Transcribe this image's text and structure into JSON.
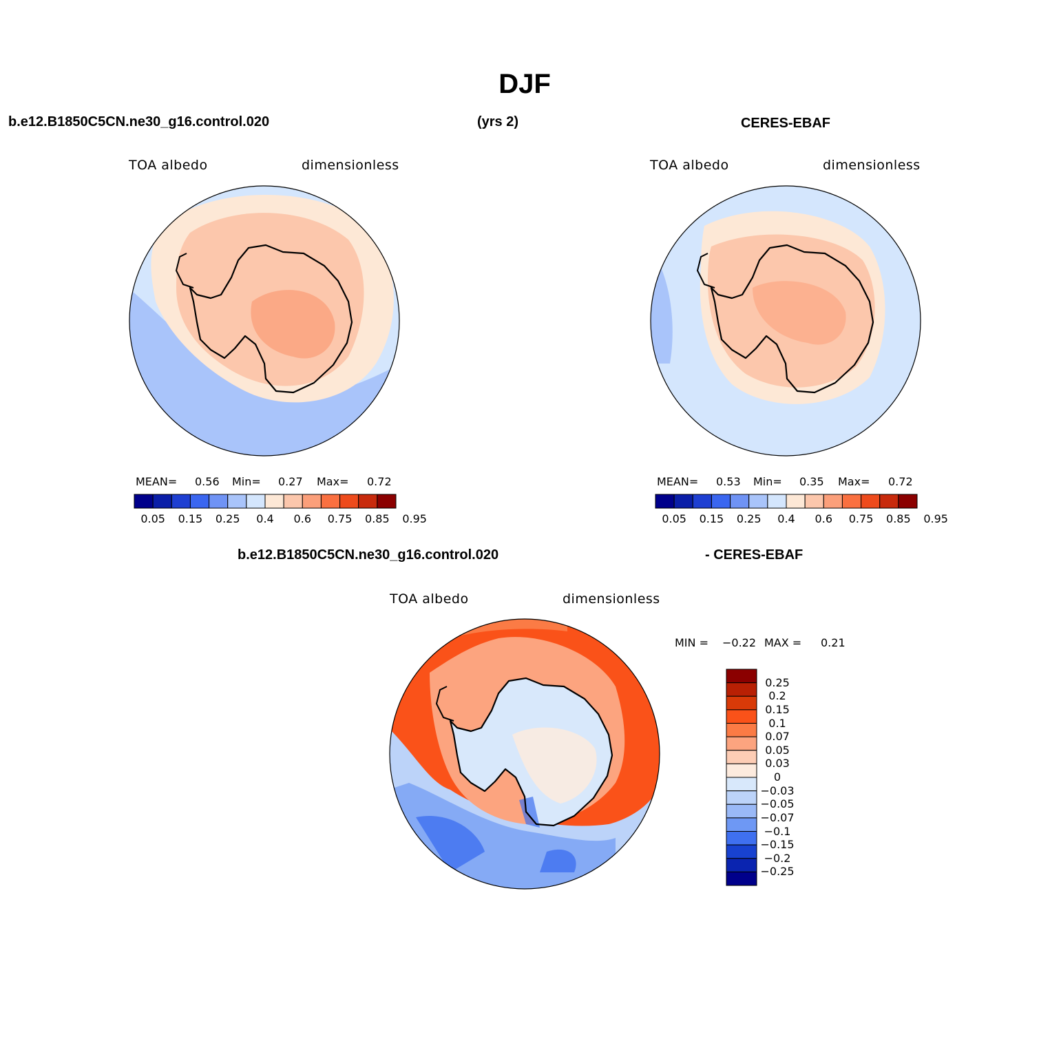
{
  "title": "DJF",
  "case_name": "b.e12.B1850C5CN.ne30_g16.control.020",
  "years": "(yrs 2)",
  "obs_name": "CERES-EBAF",
  "diff_obs_label": "- CERES-EBAF",
  "panels": {
    "model": {
      "variable": "TOA  albedo",
      "units": "dimensionless",
      "mean_label": "MEAN=",
      "mean": "0.56",
      "min_label": "Min=",
      "min": "0.27",
      "max_label": "Max=",
      "max": "0.72"
    },
    "obs": {
      "variable": "TOA  albedo",
      "units": "dimensionless",
      "mean_label": "MEAN=",
      "mean": "0.53",
      "min_label": "Min=",
      "min": "0.35",
      "max_label": "Max=",
      "max": "0.72"
    },
    "diff": {
      "variable": "TOA  albedo",
      "units": "dimensionless",
      "min_label": "MIN =",
      "min": "−0.22",
      "max_label": "MAX =",
      "max": "0.21"
    }
  },
  "colorbar_abs": {
    "colors": [
      "#00008b",
      "#0a1ea8",
      "#1e3fd2",
      "#3a66f0",
      "#6f93f5",
      "#a9c4fa",
      "#d4e6fd",
      "#fde8d6",
      "#fcc7ac",
      "#fb9f7a",
      "#fa7040",
      "#ee4b1c",
      "#c82a0c",
      "#8b0000"
    ],
    "labels": [
      "0.05",
      "0.15",
      "0.25",
      "0.4",
      "0.6",
      "0.75",
      "0.85",
      "0.95"
    ]
  },
  "colorbar_diff": {
    "colors": [
      "#8b0000",
      "#b82004",
      "#d83a08",
      "#fa5219",
      "#fb7b45",
      "#fca47f",
      "#fdcdb5",
      "#fdebde",
      "#d8e8fb",
      "#bcd3f9",
      "#9ab9f7",
      "#6e98f4",
      "#3f70f0",
      "#1842d0",
      "#0a24b0",
      "#00008b"
    ],
    "labels": [
      "0.25",
      "0.2",
      "0.15",
      "0.1",
      "0.07",
      "0.05",
      "0.03",
      "0",
      "−0.03",
      "−0.05",
      "−0.07",
      "−0.1",
      "−0.15",
      "−0.2",
      "−0.25"
    ]
  }
}
